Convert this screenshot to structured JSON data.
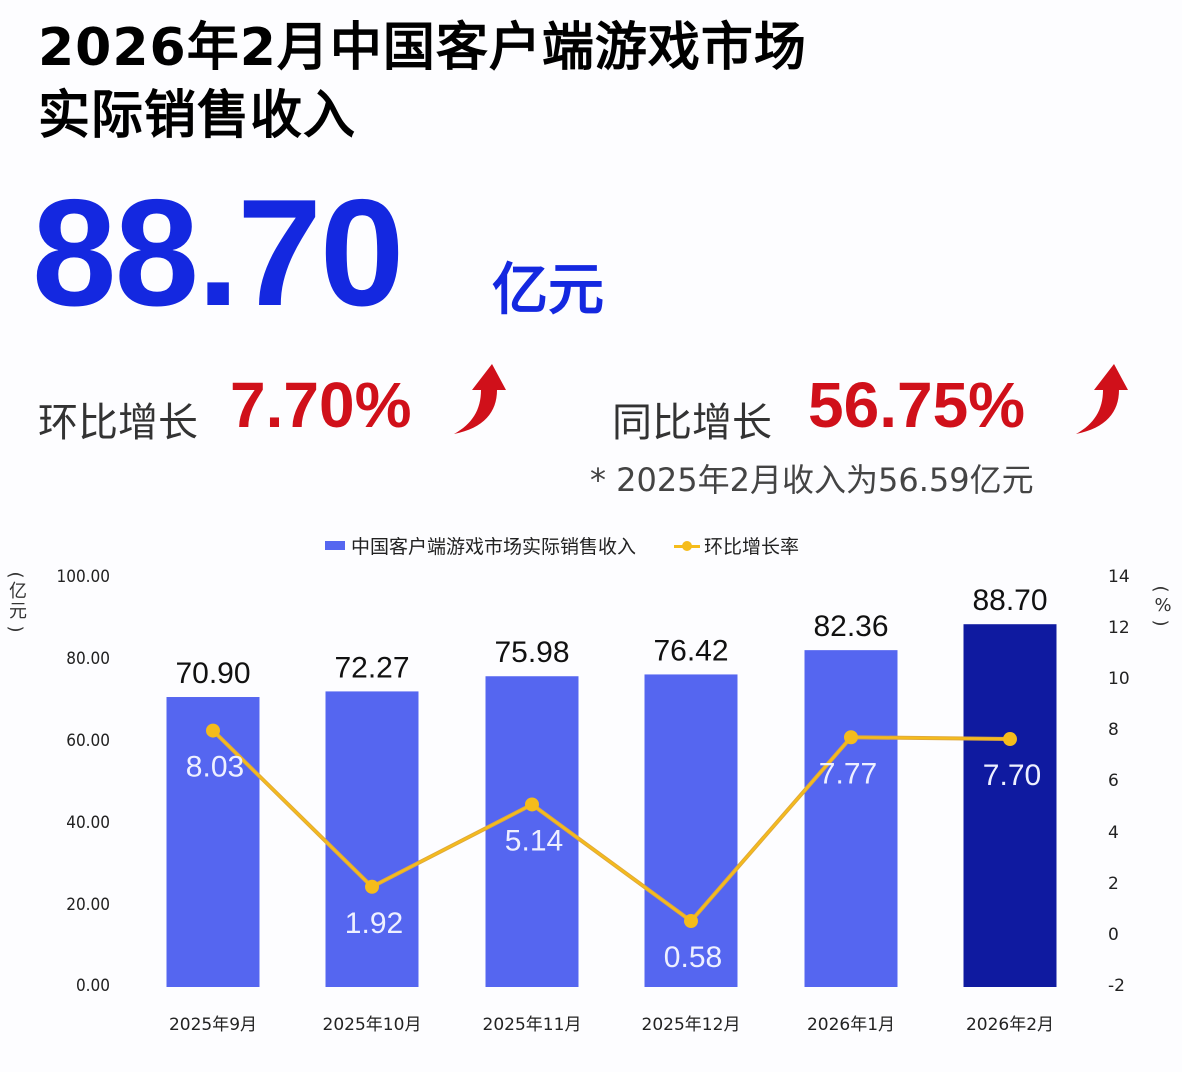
{
  "header": {
    "title_line1": "2026年2月中国客户端游戏市场",
    "title_line2": "实际销售收入"
  },
  "headline": {
    "value": "88.70",
    "unit": "亿元"
  },
  "stats": {
    "mom_label": "环比增长",
    "mom_value": "7.70%",
    "mom_icon": "up-arrow-icon",
    "yoy_label": "同比增长",
    "yoy_value": "56.75%",
    "yoy_icon": "up-arrow-icon",
    "footnote": "* 2025年2月收入为56.59亿元"
  },
  "colors": {
    "headline_blue": "#1428e0",
    "growth_red": "#d0101a",
    "bar": "#5566f0",
    "bar_highlight": "#0f1aa0",
    "line": "#f5bc1b"
  },
  "chart_data": {
    "type": "bar",
    "title": "",
    "categories": [
      "2025年9月",
      "2025年10月",
      "2025年11月",
      "2025年12月",
      "2026年1月",
      "2026年2月"
    ],
    "series": [
      {
        "name": "中国客户端游戏市场实际销售收入",
        "type": "bar",
        "axis": "left",
        "values": [
          70.9,
          72.27,
          75.98,
          76.42,
          82.36,
          88.7
        ],
        "labels": [
          "70.90",
          "72.27",
          "75.98",
          "76.42",
          "82.36",
          "88.70"
        ]
      },
      {
        "name": "环比增长率",
        "type": "line",
        "axis": "right",
        "values": [
          8.03,
          1.92,
          5.14,
          0.58,
          7.77,
          7.7
        ],
        "labels": [
          "8.03",
          "1.92",
          "5.14",
          "0.58",
          "7.77",
          "7.70"
        ]
      }
    ],
    "xlabel": "",
    "ylabel": "亿元",
    "ylabel_right": "%",
    "ylim": [
      0,
      100
    ],
    "ylim_right": [
      -2,
      14
    ],
    "yticks": [
      "100.00",
      "80.00",
      "60.00",
      "40.00",
      "20.00",
      "0.00"
    ],
    "yticks_right": [
      "14",
      "12",
      "10",
      "8",
      "6",
      "4",
      "2",
      "0",
      "-2"
    ],
    "legend": [
      "中国客户端游戏市场实际销售收入",
      "环比增长率"
    ],
    "legend_position": "top",
    "grid": false,
    "highlight_index": 5
  },
  "axis_units": {
    "left": "(亿元)",
    "right": "(%)"
  }
}
